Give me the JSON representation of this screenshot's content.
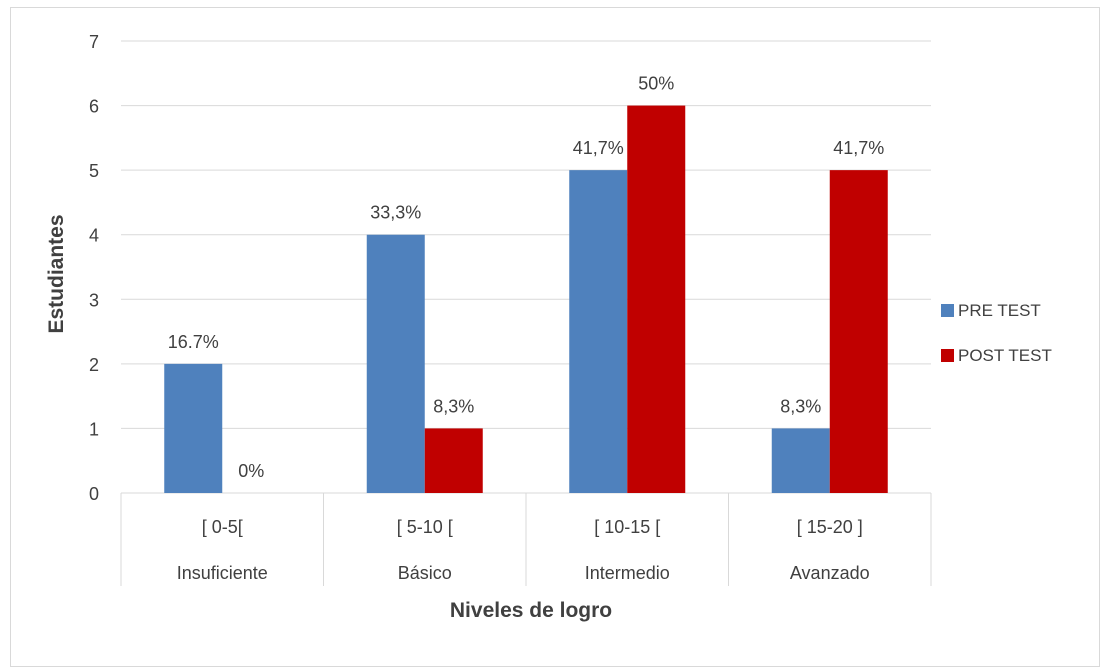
{
  "chart_data": {
    "type": "bar",
    "xlabel": "Niveles de logro",
    "ylabel": "Estudiantes",
    "ylim": [
      0,
      7
    ],
    "yticks": [
      0,
      1,
      2,
      3,
      4,
      5,
      6,
      7
    ],
    "grid": true,
    "legend_position": "right",
    "categories": [
      {
        "range": "[ 0-5[",
        "level": "Insuficiente"
      },
      {
        "range": "[ 5-10 [",
        "level": "Básico"
      },
      {
        "range": "[ 10-15 [",
        "level": "Intermedio"
      },
      {
        "range": "[ 15-20 ]",
        "level": "Avanzado"
      }
    ],
    "series": [
      {
        "name": "PRE TEST",
        "color": "#4f81bd",
        "values": [
          2,
          4,
          5,
          1
        ],
        "labels": [
          "16.7%",
          "33,3%",
          "41,7%",
          "8,3%"
        ]
      },
      {
        "name": "POST TEST",
        "color": "#c00000",
        "values": [
          0,
          1,
          6,
          5
        ],
        "labels": [
          "0%",
          "8,3%",
          "50%",
          "41,7%"
        ]
      }
    ]
  }
}
